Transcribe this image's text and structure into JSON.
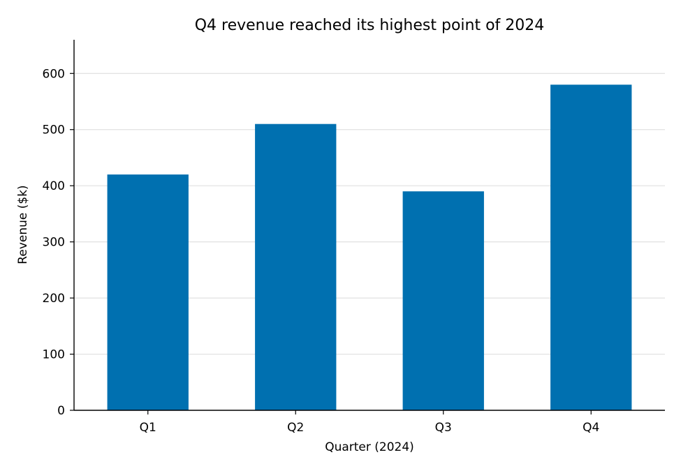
{
  "chart_data": {
    "type": "bar",
    "title": "Q4 revenue reached its highest point of 2024",
    "xlabel": "Quarter (2024)",
    "ylabel": "Revenue ($k)",
    "categories": [
      "Q1",
      "Q2",
      "Q3",
      "Q4"
    ],
    "values": [
      420,
      510,
      390,
      580
    ],
    "ylim": [
      0,
      660
    ],
    "yticks": [
      0,
      100,
      200,
      300,
      400,
      500,
      600
    ],
    "grid": "horizontal",
    "legend": "none",
    "bar_color": "#0070b0",
    "grid_color": "#e0e0e0",
    "axis_color": "#000000"
  }
}
